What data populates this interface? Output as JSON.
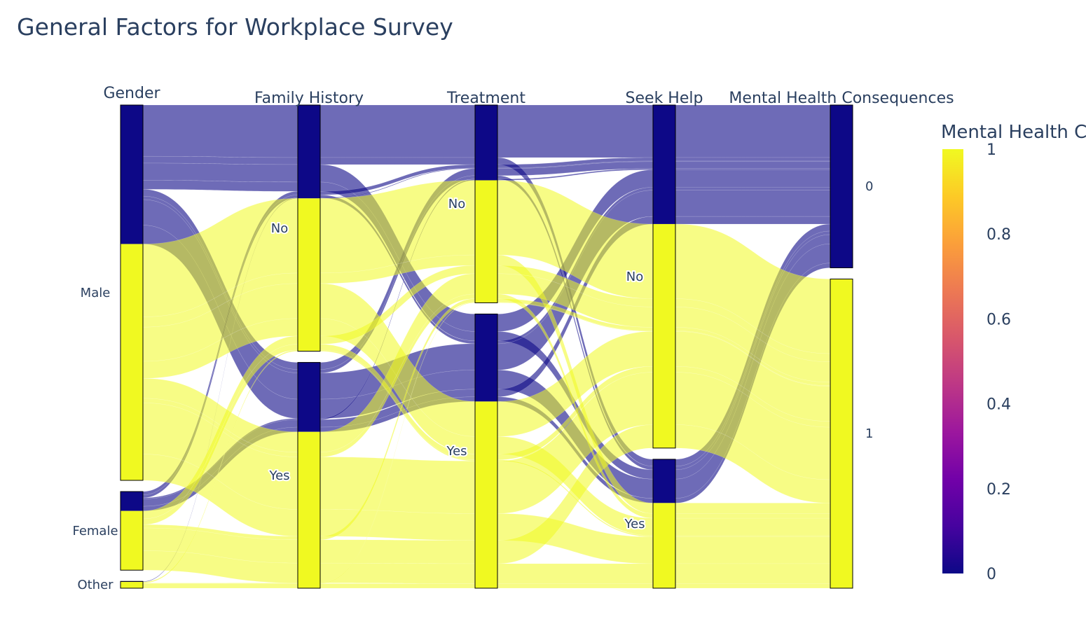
{
  "chart_data": {
    "type": "parallel_categories",
    "title": "General Factors for Workplace Survey",
    "colors": {
      "low": "#0d0887",
      "high": "#f0f921",
      "bar_0": "#0d0887",
      "bar_1": "#f0f921"
    },
    "colorscale": [
      "#0d0887",
      "#46039f",
      "#7201a8",
      "#9c179e",
      "#bd3786",
      "#d8576b",
      "#ed7953",
      "#fb9f3a",
      "#fdca26",
      "#f0f921"
    ],
    "colorbar": {
      "title": "Mental Health Consequences",
      "range": [
        0,
        1
      ],
      "ticks": [
        "0",
        "0.2",
        "0.4",
        "0.6",
        "0.8",
        "1"
      ]
    },
    "dimensions": [
      {
        "label": "Gender",
        "categories": [
          "Male",
          "Female",
          "Other"
        ]
      },
      {
        "label": "Family History",
        "categories": [
          "No",
          "Yes"
        ]
      },
      {
        "label": "Treatment",
        "categories": [
          "No",
          "Yes"
        ]
      },
      {
        "label": "Seek Help",
        "categories": [
          "No",
          "Yes"
        ]
      },
      {
        "label": "Mental Health Consequences",
        "categories": [
          "0",
          "1"
        ]
      }
    ],
    "paths": [
      {
        "values": [
          "Male",
          "No",
          "No",
          "No",
          "0"
        ],
        "color": 0,
        "count": 90
      },
      {
        "values": [
          "Male",
          "No",
          "No",
          "Yes",
          "0"
        ],
        "color": 0,
        "count": 12
      },
      {
        "values": [
          "Male",
          "No",
          "Yes",
          "No",
          "0"
        ],
        "color": 0,
        "count": 30
      },
      {
        "values": [
          "Male",
          "No",
          "Yes",
          "Yes",
          "0"
        ],
        "color": 0,
        "count": 16
      },
      {
        "values": [
          "Male",
          "Yes",
          "No",
          "No",
          "0"
        ],
        "color": 0,
        "count": 12
      },
      {
        "values": [
          "Male",
          "Yes",
          "No",
          "Yes",
          "0"
        ],
        "color": 0,
        "count": 6
      },
      {
        "values": [
          "Male",
          "Yes",
          "Yes",
          "No",
          "0"
        ],
        "color": 0,
        "count": 45
      },
      {
        "values": [
          "Male",
          "Yes",
          "Yes",
          "Yes",
          "0"
        ],
        "color": 0,
        "count": 33
      },
      {
        "values": [
          "Female",
          "No",
          "No",
          "No",
          "0"
        ],
        "color": 0,
        "count": 6
      },
      {
        "values": [
          "Female",
          "No",
          "Yes",
          "No",
          "0"
        ],
        "color": 0,
        "count": 5
      },
      {
        "values": [
          "Female",
          "Yes",
          "No",
          "No",
          "0"
        ],
        "color": 0,
        "count": 2
      },
      {
        "values": [
          "Female",
          "Yes",
          "Yes",
          "No",
          "0"
        ],
        "color": 0,
        "count": 13
      },
      {
        "values": [
          "Female",
          "Yes",
          "Yes",
          "Yes",
          "0"
        ],
        "color": 0,
        "count": 8
      },
      {
        "values": [
          "Other",
          "No",
          "No",
          "No",
          "0"
        ],
        "color": 0,
        "count": 1
      },
      {
        "values": [
          "Male",
          "No",
          "No",
          "No",
          "1"
        ],
        "color": 1,
        "count": 128
      },
      {
        "values": [
          "Male",
          "No",
          "No",
          "Yes",
          "1"
        ],
        "color": 1,
        "count": 18
      },
      {
        "values": [
          "Male",
          "No",
          "Yes",
          "No",
          "1"
        ],
        "color": 1,
        "count": 60
      },
      {
        "values": [
          "Male",
          "No",
          "Yes",
          "Yes",
          "1"
        ],
        "color": 1,
        "count": 30
      },
      {
        "values": [
          "Male",
          "Yes",
          "No",
          "No",
          "1"
        ],
        "color": 1,
        "count": 35
      },
      {
        "values": [
          "Male",
          "Yes",
          "No",
          "Yes",
          "1"
        ],
        "color": 1,
        "count": 8
      },
      {
        "values": [
          "Male",
          "Yes",
          "Yes",
          "No",
          "1"
        ],
        "color": 1,
        "count": 90
      },
      {
        "values": [
          "Male",
          "Yes",
          "Yes",
          "Yes",
          "1"
        ],
        "color": 1,
        "count": 46
      },
      {
        "values": [
          "Female",
          "No",
          "No",
          "No",
          "1"
        ],
        "color": 1,
        "count": 14
      },
      {
        "values": [
          "Female",
          "No",
          "Yes",
          "No",
          "1"
        ],
        "color": 1,
        "count": 10
      },
      {
        "values": [
          "Female",
          "Yes",
          "No",
          "No",
          "1"
        ],
        "color": 1,
        "count": 6
      },
      {
        "values": [
          "Female",
          "Yes",
          "Yes",
          "No",
          "1"
        ],
        "color": 1,
        "count": 40
      },
      {
        "values": [
          "Female",
          "Yes",
          "Yes",
          "Yes",
          "1"
        ],
        "color": 1,
        "count": 34
      },
      {
        "values": [
          "Other",
          "No",
          "Yes",
          "Yes",
          "1"
        ],
        "color": 1,
        "count": 2
      },
      {
        "values": [
          "Other",
          "Yes",
          "No",
          "No",
          "1"
        ],
        "color": 1,
        "count": 1
      },
      {
        "values": [
          "Other",
          "Yes",
          "Yes",
          "Yes",
          "1"
        ],
        "color": 1,
        "count": 8
      }
    ]
  }
}
